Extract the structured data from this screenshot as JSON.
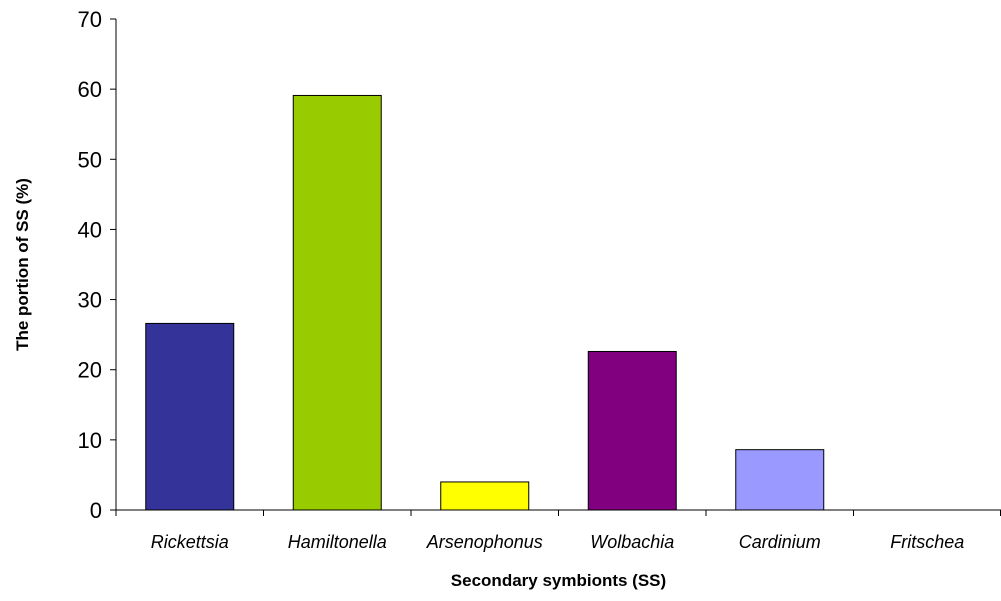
{
  "chart_data": {
    "type": "bar",
    "title": "",
    "xlabel": "Secondary symbionts (SS)",
    "ylabel": "The portion of SS (%)",
    "categories": [
      "Rickettsia",
      "Hamiltonella",
      "Arsenophonus",
      "Wolbachia",
      "Cardinium",
      "Fritschea"
    ],
    "values": [
      26.6,
      59.1,
      4.0,
      22.6,
      8.6,
      0
    ],
    "colors": [
      "#333399",
      "#99CC00",
      "#FFFF00",
      "#800080",
      "#9999FF",
      "#FFFFFF"
    ],
    "ylim": [
      0,
      70
    ],
    "yticks": [
      0,
      10,
      20,
      30,
      40,
      50,
      60,
      70
    ],
    "grid": false,
    "legend": "none"
  }
}
